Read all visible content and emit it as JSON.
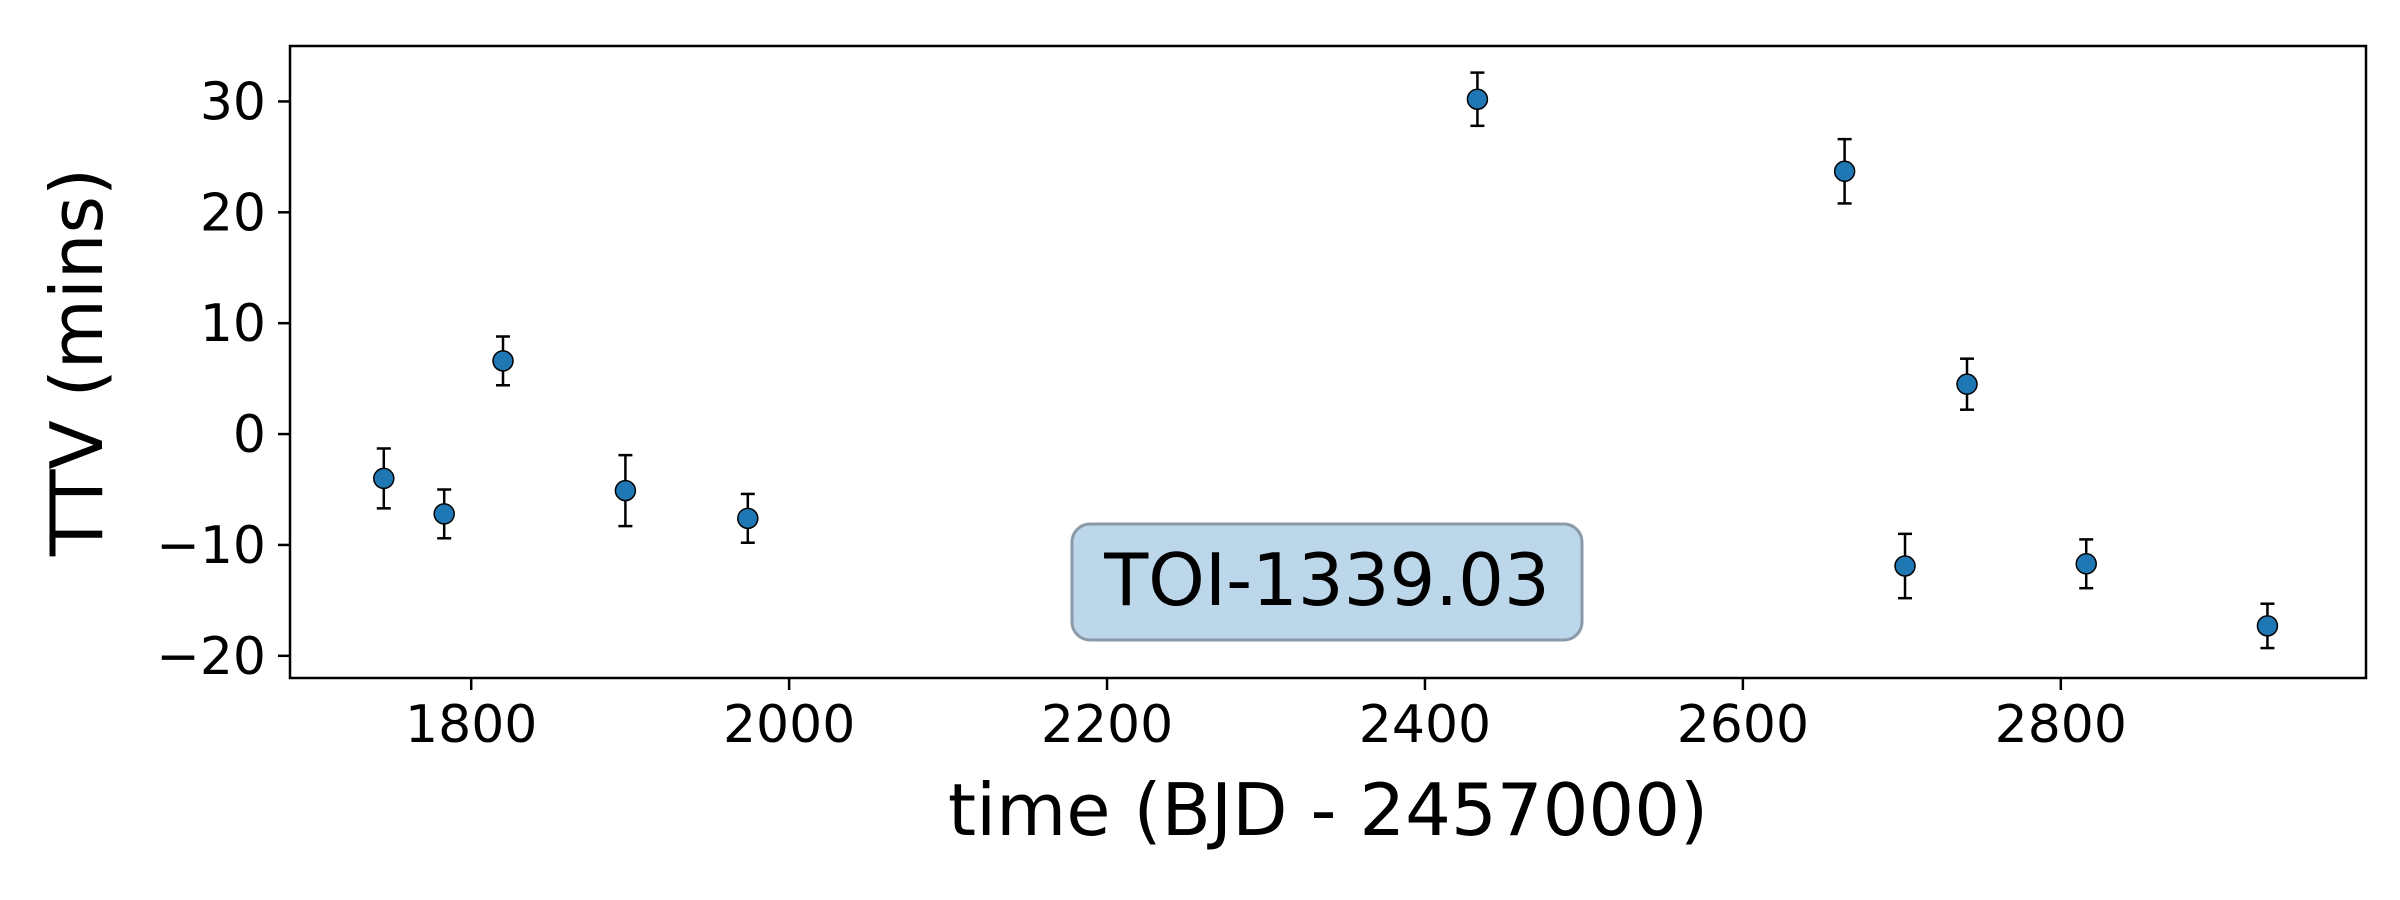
{
  "chart_data": {
    "type": "scatter",
    "xlabel": "time (BJD - 2457000)",
    "ylabel": "TTV (mins)",
    "annotation": "TOI-1339.03",
    "xlim": [
      1686,
      2992
    ],
    "ylim": [
      -22,
      35
    ],
    "xticks": [
      1800,
      2000,
      2200,
      2400,
      2600,
      2800
    ],
    "yticks": [
      -20,
      -10,
      0,
      10,
      20,
      30
    ],
    "ytick_labels": [
      "−20",
      "−10",
      "0",
      "10",
      "20",
      "30"
    ],
    "grid": false,
    "legend": "none",
    "colors": {
      "marker": "#1f77b4",
      "errorbar": "#000000",
      "annotation_box": "#bcd6ea",
      "annotation_border": "#8a9aa8"
    },
    "points": [
      {
        "x": 1745,
        "y": -4.0,
        "err": 2.7
      },
      {
        "x": 1783,
        "y": -7.2,
        "err": 2.2
      },
      {
        "x": 1820,
        "y": 6.6,
        "err": 2.2
      },
      {
        "x": 1897,
        "y": -5.1,
        "err": 3.2
      },
      {
        "x": 1974,
        "y": -7.6,
        "err": 2.2
      },
      {
        "x": 2433,
        "y": 30.2,
        "err": 2.4
      },
      {
        "x": 2664,
        "y": 23.7,
        "err": 2.9
      },
      {
        "x": 2702,
        "y": -11.9,
        "err": 2.9
      },
      {
        "x": 2741,
        "y": 4.5,
        "err": 2.3
      },
      {
        "x": 2816,
        "y": -11.7,
        "err": 2.2
      },
      {
        "x": 2930,
        "y": -17.3,
        "err": 2.0
      }
    ]
  }
}
